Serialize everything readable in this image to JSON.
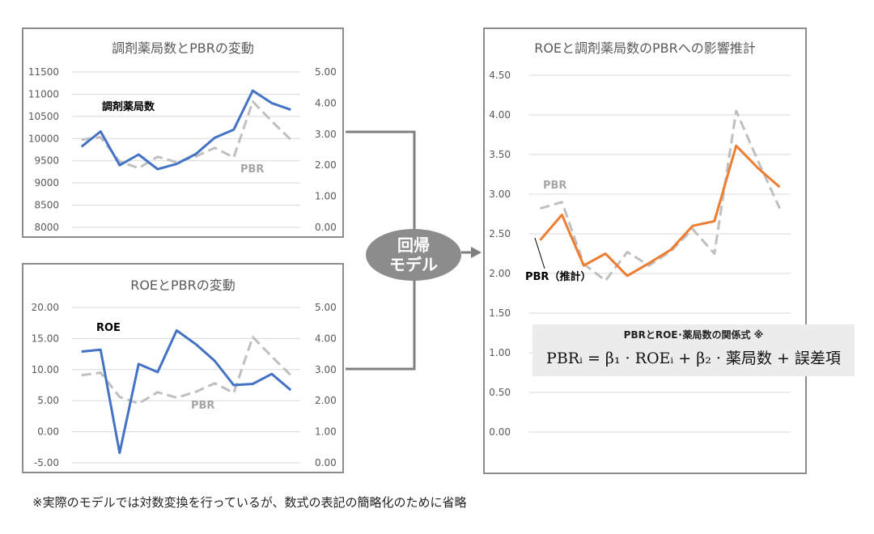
{
  "regression_label": [
    "回帰",
    "モデル"
  ],
  "formula": {
    "title": "PBRとROE･薬局数の関係式 ※",
    "equation": "PBRᵢ = β₁ · ROEᵢ + β₂ · 薬局数 + 誤差項"
  },
  "footnote": "※実際のモデルでは対数変換を行っているが、数式の表記の簡略化のために省略",
  "colors": {
    "blue": "#4472c4",
    "gray": "#bfbfbf",
    "orange": "#ed7d31",
    "connector": "#7f7f7f"
  },
  "chart_data": [
    {
      "type": "line",
      "title": "調剤薬局数とPBRの変動",
      "y_left": {
        "range": [
          8000,
          11500
        ],
        "ticks": [
          "11500",
          "11000",
          "10500",
          "10000",
          "9500",
          "9000",
          "8500",
          "8000"
        ]
      },
      "y_right": {
        "range": [
          0,
          5
        ],
        "ticks": [
          "5.00",
          "4.00",
          "3.00",
          "2.00",
          "1.00",
          "0.00"
        ]
      },
      "grid": true,
      "series": [
        {
          "name": "調剤薬局数",
          "axis": "left",
          "style": "solid",
          "color": "#4472c4",
          "values": [
            9820,
            10160,
            9400,
            9640,
            9310,
            9430,
            9650,
            10020,
            10200,
            11080,
            10800,
            10650
          ]
        },
        {
          "name": "PBR",
          "axis": "right",
          "style": "dashed",
          "color": "#bfbfbf",
          "values": [
            2.82,
            2.9,
            2.12,
            1.91,
            2.27,
            2.1,
            2.28,
            2.56,
            2.25,
            4.05,
            3.42,
            2.82
          ]
        }
      ]
    },
    {
      "type": "line",
      "title": "ROEとPBRの変動",
      "y_left": {
        "range": [
          -5,
          20
        ],
        "ticks": [
          "20.00",
          "15.00",
          "10.00",
          "5.00",
          "0.00",
          "-5.00"
        ]
      },
      "y_right": {
        "range": [
          0,
          5
        ],
        "ticks": [
          "5.00",
          "4.00",
          "3.00",
          "2.00",
          "1.00",
          "0.00"
        ]
      },
      "grid": true,
      "series": [
        {
          "name": "ROE",
          "axis": "left",
          "style": "solid",
          "color": "#4472c4",
          "values": [
            12.9,
            13.2,
            -3.4,
            10.9,
            9.6,
            16.3,
            14.1,
            11.4,
            7.5,
            7.7,
            9.3,
            6.7
          ]
        },
        {
          "name": "PBR",
          "axis": "right",
          "style": "dashed",
          "color": "#bfbfbf",
          "values": [
            2.82,
            2.9,
            2.12,
            1.91,
            2.27,
            2.1,
            2.28,
            2.56,
            2.25,
            4.05,
            3.42,
            2.82
          ]
        }
      ]
    },
    {
      "type": "line",
      "title": "ROEと調剤薬局数のPBRへの影響推計",
      "y_left": {
        "range": [
          0,
          4.5
        ],
        "ticks": [
          "4.50",
          "4.00",
          "3.50",
          "3.00",
          "2.50",
          "2.00",
          "1.50",
          "1.00",
          "0.50",
          "0.00"
        ]
      },
      "grid": true,
      "series": [
        {
          "name": "PBR",
          "axis": "left",
          "style": "dashed",
          "color": "#bfbfbf",
          "values": [
            2.82,
            2.9,
            2.12,
            1.91,
            2.27,
            2.1,
            2.28,
            2.56,
            2.25,
            4.05,
            3.42,
            2.82
          ]
        },
        {
          "name": "PBR（推計）",
          "axis": "left",
          "style": "solid",
          "color": "#ed7d31",
          "values": [
            2.42,
            2.74,
            2.1,
            2.25,
            1.97,
            2.13,
            2.3,
            2.6,
            2.66,
            3.61,
            3.33,
            3.09
          ]
        }
      ]
    }
  ]
}
